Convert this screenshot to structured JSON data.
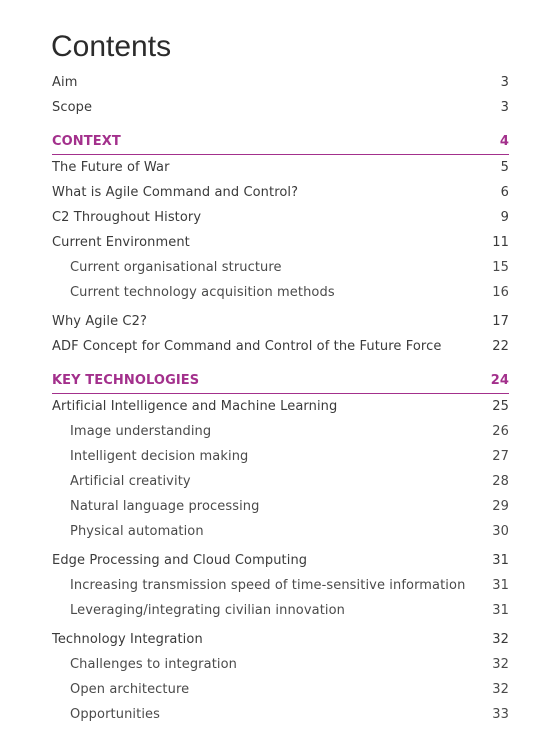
{
  "title": "Contents",
  "entries": [
    {
      "level": 1,
      "label": "Aim",
      "page": "3"
    },
    {
      "level": 1,
      "label": "Scope",
      "page": "3"
    },
    {
      "level": 0,
      "label": "CONTEXT",
      "page": "4"
    },
    {
      "level": 1,
      "label": "The Future of War",
      "page": "5"
    },
    {
      "level": 1,
      "label": "What is Agile Command and Control?",
      "page": "6"
    },
    {
      "level": 1,
      "label": "C2 Throughout History",
      "page": "9"
    },
    {
      "level": 1,
      "label": "Current Environment",
      "page": "11"
    },
    {
      "level": 2,
      "label": "Current organisational structure",
      "page": "15"
    },
    {
      "level": 2,
      "label": "Current technology acquisition methods",
      "page": "16"
    },
    {
      "level": 1,
      "label": "Why Agile C2?",
      "page": "17"
    },
    {
      "level": 1,
      "label": "ADF Concept for Command and Control of the Future Force",
      "page": "22"
    },
    {
      "level": 0,
      "label": "KEY TECHNOLOGIES",
      "page": "24"
    },
    {
      "level": 1,
      "label": "Artificial Intelligence and Machine Learning",
      "page": "25"
    },
    {
      "level": 2,
      "label": "Image understanding",
      "page": "26"
    },
    {
      "level": 2,
      "label": "Intelligent decision making",
      "page": "27"
    },
    {
      "level": 2,
      "label": "Artificial creativity",
      "page": "28"
    },
    {
      "level": 2,
      "label": "Natural language processing",
      "page": "29"
    },
    {
      "level": 2,
      "label": "Physical automation",
      "page": "30"
    },
    {
      "level": 1,
      "label": "Edge Processing and Cloud Computing",
      "page": "31"
    },
    {
      "level": 2,
      "label": "Increasing transmission speed of time-sensitive information",
      "page": "31"
    },
    {
      "level": 2,
      "label": "Leveraging/integrating civilian innovation",
      "page": "31"
    },
    {
      "level": 1,
      "label": "Technology Integration",
      "page": "32"
    },
    {
      "level": 2,
      "label": "Challenges to integration",
      "page": "32"
    },
    {
      "level": 2,
      "label": "Open architecture",
      "page": "32"
    },
    {
      "level": 2,
      "label": "Opportunities",
      "page": "33"
    }
  ]
}
